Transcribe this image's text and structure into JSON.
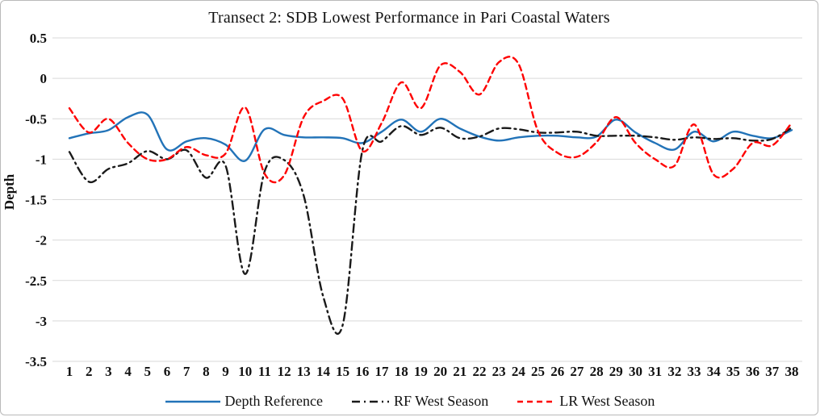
{
  "chart_data": {
    "type": "line",
    "title": "Transect 2: SDB Lowest Performance in Pari Coastal Waters",
    "xlabel": "",
    "ylabel": "Depth",
    "categories": [
      "1",
      "2",
      "3",
      "4",
      "5",
      "6",
      "7",
      "8",
      "9",
      "10",
      "11",
      "12",
      "13",
      "14",
      "15",
      "16",
      "17",
      "18",
      "19",
      "20",
      "21",
      "22",
      "23",
      "24",
      "25",
      "26",
      "27",
      "28",
      "29",
      "30",
      "31",
      "32",
      "33",
      "34",
      "35",
      "36",
      "37",
      "38"
    ],
    "ylim": [
      -3.5,
      0.5
    ],
    "yticks": [
      "0.5",
      "0",
      "-0.5",
      "-1",
      "-1.5",
      "-2",
      "-2.5",
      "-3",
      "-3.5"
    ],
    "grid": "horizontal-only",
    "legend_position": "bottom",
    "gridline_color": "#d9d9d9",
    "series": [
      {
        "name": "Depth Reference",
        "color": "#2273b8",
        "style": "solid",
        "values": [
          -0.74,
          -0.68,
          -0.64,
          -0.48,
          -0.45,
          -0.88,
          -0.78,
          -0.74,
          -0.82,
          -1.02,
          -0.63,
          -0.7,
          -0.73,
          -0.73,
          -0.74,
          -0.8,
          -0.66,
          -0.51,
          -0.66,
          -0.5,
          -0.62,
          -0.72,
          -0.77,
          -0.73,
          -0.71,
          -0.71,
          -0.73,
          -0.72,
          -0.51,
          -0.67,
          -0.8,
          -0.88,
          -0.66,
          -0.78,
          -0.66,
          -0.71,
          -0.74,
          -0.64
        ]
      },
      {
        "name": "RF West Season",
        "color": "#1a1a1a",
        "style": "dash-dot",
        "values": [
          -0.91,
          -1.28,
          -1.12,
          -1.05,
          -0.9,
          -1.0,
          -0.89,
          -1.23,
          -1.08,
          -2.42,
          -1.15,
          -1.01,
          -1.45,
          -2.7,
          -3.05,
          -0.9,
          -0.78,
          -0.59,
          -0.7,
          -0.61,
          -0.74,
          -0.72,
          -0.62,
          -0.63,
          -0.67,
          -0.67,
          -0.66,
          -0.71,
          -0.71,
          -0.71,
          -0.73,
          -0.76,
          -0.73,
          -0.75,
          -0.74,
          -0.77,
          -0.75,
          -0.61
        ]
      },
      {
        "name": "LR West Season",
        "color": "#fe0000",
        "style": "dashed",
        "values": [
          -0.37,
          -0.67,
          -0.5,
          -0.8,
          -1.0,
          -1.0,
          -0.85,
          -0.95,
          -0.93,
          -0.36,
          -1.18,
          -1.2,
          -0.48,
          -0.28,
          -0.25,
          -0.9,
          -0.55,
          -0.05,
          -0.37,
          0.16,
          0.08,
          -0.2,
          0.2,
          0.18,
          -0.65,
          -0.92,
          -0.97,
          -0.79,
          -0.48,
          -0.8,
          -1.0,
          -1.08,
          -0.57,
          -1.19,
          -1.12,
          -0.8,
          -0.83,
          -0.55
        ]
      }
    ]
  }
}
